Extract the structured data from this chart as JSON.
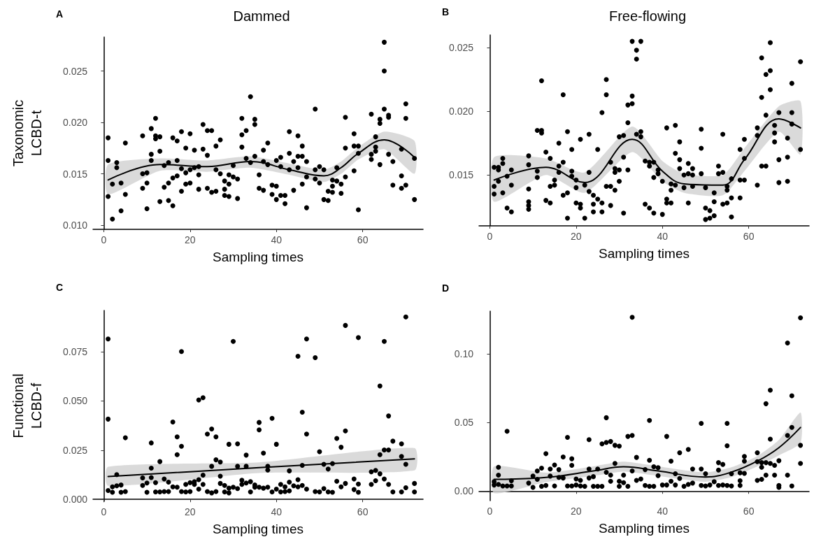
{
  "chart_data": [
    {
      "type": "scatter",
      "title": "Dammed",
      "annotations": [
        "A"
      ],
      "xlabel": "Sampling times",
      "ylabel": "Taxonomic\nLCBD-t",
      "xlim": [
        -2.5,
        74
      ],
      "xticks": [
        0,
        20,
        40,
        60
      ],
      "ylim": [
        0.0096,
        0.0283
      ],
      "yticks": [
        {
          "value": 0.01,
          "label": "0.010"
        },
        {
          "value": 0.015,
          "label": "0.015"
        },
        {
          "value": 0.02,
          "label": "0.020"
        },
        {
          "value": 0.025,
          "label": "0.025"
        }
      ],
      "marker": "circle",
      "series": [
        {
          "color": "#000000",
          "x": [
            1,
            1,
            1,
            2,
            2,
            3,
            3,
            4,
            4,
            5,
            5,
            9,
            9,
            9,
            10,
            10,
            10,
            11,
            11,
            11,
            12,
            12,
            12,
            13,
            13,
            13,
            14,
            14,
            15,
            15,
            15,
            16,
            16,
            16,
            17,
            17,
            17,
            18,
            18,
            18,
            19,
            19,
            19,
            20,
            20,
            20,
            21,
            21,
            22,
            22,
            22,
            23,
            23,
            24,
            24,
            24,
            25,
            25,
            26,
            26,
            26,
            27,
            27,
            28,
            28,
            28,
            29,
            29,
            29,
            30,
            30,
            31,
            31,
            32,
            32,
            32,
            33,
            33,
            34,
            34,
            35,
            35,
            35,
            36,
            36,
            37,
            37,
            37,
            38,
            38,
            39,
            39,
            40,
            40,
            40,
            41,
            41,
            41,
            42,
            42,
            43,
            43,
            43,
            44,
            44,
            45,
            45,
            45,
            46,
            46,
            46,
            47,
            47,
            47,
            49,
            49,
            49,
            50,
            50,
            51,
            51,
            52,
            52,
            53,
            53,
            53,
            54,
            54,
            55,
            55,
            56,
            56,
            56,
            58,
            58,
            58,
            59,
            59,
            59,
            62,
            62,
            62,
            63,
            63,
            63,
            64,
            64,
            64,
            65,
            65,
            65,
            66,
            66,
            66,
            67,
            67,
            69,
            69,
            69,
            70,
            70,
            70,
            72,
            72
          ],
          "values": [
            0.0185,
            0.0163,
            0.0128,
            0.0106,
            0.014,
            0.0161,
            0.0156,
            0.0141,
            0.0114,
            0.018,
            0.013,
            0.0187,
            0.015,
            0.0136,
            0.0151,
            0.0141,
            0.0116,
            0.0194,
            0.0169,
            0.0163,
            0.0204,
            0.0187,
            0.0184,
            0.0186,
            0.0172,
            0.0123,
            0.0158,
            0.0137,
            0.0161,
            0.0141,
            0.0124,
            0.0185,
            0.0146,
            0.0119,
            0.0182,
            0.0163,
            0.0148,
            0.0191,
            0.0155,
            0.0133,
            0.0175,
            0.0151,
            0.014,
            0.0189,
            0.0154,
            0.0141,
            0.0173,
            0.0156,
            0.0157,
            0.0149,
            0.0135,
            0.0198,
            0.0174,
            0.0192,
            0.0168,
            0.0136,
            0.0192,
            0.0132,
            0.0177,
            0.0154,
            0.0133,
            0.0183,
            0.015,
            0.0143,
            0.0135,
            0.0129,
            0.0149,
            0.014,
            0.0128,
            0.0158,
            0.0147,
            0.0145,
            0.0126,
            0.0204,
            0.0188,
            0.0176,
            0.0192,
            0.0165,
            0.0225,
            0.0161,
            0.0203,
            0.0198,
            0.0167,
            0.0149,
            0.0136,
            0.0173,
            0.0162,
            0.0134,
            0.018,
            0.0159,
            0.0139,
            0.013,
            0.0163,
            0.0138,
            0.0125,
            0.0166,
            0.0157,
            0.0129,
            0.0129,
            0.0121,
            0.0191,
            0.017,
            0.0154,
            0.0162,
            0.0134,
            0.0187,
            0.0167,
            0.0156,
            0.0177,
            0.0167,
            0.014,
            0.0162,
            0.0147,
            0.0117,
            0.0213,
            0.0154,
            0.0145,
            0.0157,
            0.0141,
            0.0154,
            0.0125,
            0.0133,
            0.0124,
            0.0144,
            0.0138,
            0.0132,
            0.0156,
            0.0143,
            0.014,
            0.0131,
            0.0205,
            0.0175,
            0.0147,
            0.0189,
            0.0177,
            0.0153,
            0.0177,
            0.017,
            0.0115,
            0.0208,
            0.0169,
            0.0164,
            0.0186,
            0.0176,
            0.0172,
            0.0203,
            0.0199,
            0.0159,
            0.0278,
            0.025,
            0.0213,
            0.0207,
            0.0205,
            0.0169,
            0.0162,
            0.0139,
            0.0174,
            0.0148,
            0.0136,
            0.0218,
            0.0204,
            0.0139,
            0.0165,
            0.0125
          ]
        },
        {
          "type": "line",
          "marker": "none",
          "color": "#000000",
          "x": [
            1,
            13,
            24,
            34,
            43,
            51,
            55,
            59,
            65,
            72
          ],
          "values": [
            0.0144,
            0.0159,
            0.0157,
            0.0162,
            0.0154,
            0.0148,
            0.0156,
            0.017,
            0.0183,
            0.0166
          ],
          "lower": [
            0.013,
            0.0153,
            0.0152,
            0.0156,
            0.0149,
            0.0142,
            0.015,
            0.0164,
            0.0174,
            0.015
          ],
          "upper": [
            0.0159,
            0.0165,
            0.0163,
            0.0167,
            0.016,
            0.0154,
            0.0162,
            0.0176,
            0.0191,
            0.0182
          ]
        }
      ]
    },
    {
      "type": "scatter",
      "title": "Free-flowing",
      "annotations": [
        "B"
      ],
      "xlabel": "Sampling times",
      "xlim": [
        -2.5,
        74
      ],
      "xticks": [
        0,
        20,
        40,
        60
      ],
      "ylim": [
        0.011,
        0.026
      ],
      "yticks": [
        {
          "value": 0.015,
          "label": "0.015"
        },
        {
          "value": 0.02,
          "label": "0.020"
        },
        {
          "value": 0.025,
          "label": "0.025"
        }
      ],
      "marker": "circle",
      "series": [
        {
          "color": "#000000",
          "x": [
            1,
            1,
            1,
            2,
            2,
            2,
            3,
            3,
            3,
            4,
            4,
            5,
            5,
            5,
            9,
            9,
            9,
            9,
            9,
            9,
            11,
            11,
            11,
            12,
            12,
            12,
            13,
            13,
            14,
            14,
            14,
            15,
            15,
            16,
            16,
            16,
            17,
            17,
            17,
            18,
            18,
            18,
            19,
            19,
            19,
            20,
            20,
            20,
            21,
            21,
            21,
            22,
            22,
            23,
            23,
            23,
            24,
            24,
            24,
            25,
            25,
            26,
            26,
            26,
            27,
            27,
            27,
            28,
            28,
            28,
            29,
            29,
            29,
            30,
            30,
            30,
            31,
            31,
            31,
            32,
            32,
            32,
            33,
            33,
            33,
            34,
            34,
            34,
            35,
            35,
            35,
            36,
            36,
            37,
            37,
            37,
            38,
            38,
            38,
            39,
            39,
            40,
            40,
            41,
            41,
            41,
            42,
            42,
            42,
            43,
            43,
            43,
            44,
            44,
            44,
            45,
            45,
            46,
            46,
            46,
            47,
            47,
            47,
            49,
            49,
            49,
            50,
            50,
            50,
            51,
            51,
            52,
            52,
            52,
            53,
            53,
            54,
            54,
            54,
            55,
            55,
            55,
            56,
            56,
            56,
            58,
            58,
            58,
            59,
            59,
            59,
            62,
            62,
            62,
            63,
            63,
            63,
            64,
            64,
            64,
            65,
            65,
            65,
            66,
            66,
            66,
            67,
            67,
            67,
            69,
            69,
            69,
            70,
            70,
            70,
            72,
            72
          ],
          "values": [
            0.0156,
            0.0141,
            0.0135,
            0.0156,
            0.0154,
            0.0145,
            0.0163,
            0.0159,
            0.0136,
            0.0149,
            0.0124,
            0.0154,
            0.0142,
            0.0121,
            0.0165,
            0.0158,
            0.0139,
            0.0129,
            0.0126,
            0.0123,
            0.0185,
            0.0153,
            0.0148,
            0.0224,
            0.0185,
            0.0183,
            0.0168,
            0.013,
            0.0163,
            0.0141,
            0.0128,
            0.0146,
            0.0142,
            0.0175,
            0.0157,
            0.0152,
            0.0213,
            0.016,
            0.0134,
            0.0184,
            0.0136,
            0.0116,
            0.017,
            0.0153,
            0.0149,
            0.0146,
            0.014,
            0.0128,
            0.0178,
            0.0127,
            0.0124,
            0.0142,
            0.0116,
            0.0182,
            0.0152,
            0.0137,
            0.0134,
            0.0127,
            0.0121,
            0.017,
            0.0131,
            0.0199,
            0.0128,
            0.0121,
            0.0225,
            0.0213,
            0.0141,
            0.016,
            0.0141,
            0.0126,
            0.0155,
            0.0152,
            0.0138,
            0.018,
            0.0154,
            0.0145,
            0.0181,
            0.0164,
            0.012,
            0.0205,
            0.0191,
            0.0154,
            0.0255,
            0.0212,
            0.0206,
            0.0248,
            0.0241,
            0.0182,
            0.0255,
            0.0184,
            0.018,
            0.0161,
            0.0127,
            0.016,
            0.0157,
            0.0124,
            0.016,
            0.0148,
            0.012,
            0.0154,
            0.0151,
            0.0145,
            0.0119,
            0.0187,
            0.0131,
            0.0128,
            0.0143,
            0.0138,
            0.0128,
            0.0189,
            0.0167,
            0.0142,
            0.0176,
            0.0162,
            0.0155,
            0.015,
            0.014,
            0.0159,
            0.0151,
            0.0128,
            0.0155,
            0.015,
            0.0141,
            0.0186,
            0.0171,
            0.0151,
            0.014,
            0.0124,
            0.0115,
            0.0122,
            0.0116,
            0.0136,
            0.0129,
            0.0118,
            0.0157,
            0.0151,
            0.0182,
            0.0152,
            0.0127,
            0.0141,
            0.0138,
            0.0128,
            0.0147,
            0.0132,
            0.0117,
            0.017,
            0.0146,
            0.0132,
            0.0178,
            0.0163,
            0.0146,
            0.0187,
            0.0181,
            0.0142,
            0.0242,
            0.0211,
            0.0157,
            0.0229,
            0.0197,
            0.0157,
            0.0254,
            0.0232,
            0.0217,
            0.0189,
            0.0183,
            0.0176,
            0.0199,
            0.0162,
            0.0144,
            0.0179,
            0.0164,
            0.0145,
            0.0222,
            0.0199,
            0.019,
            0.0239,
            0.017
          ]
        },
        {
          "type": "line",
          "marker": "none",
          "color": "#000000",
          "x": [
            1,
            13,
            22,
            33,
            40,
            45,
            54,
            59,
            67,
            72
          ],
          "values": [
            0.0146,
            0.0156,
            0.0144,
            0.0178,
            0.0153,
            0.0143,
            0.0142,
            0.0162,
            0.0194,
            0.0187
          ],
          "lower": [
            0.0129,
            0.015,
            0.0136,
            0.0168,
            0.0145,
            0.0136,
            0.0134,
            0.0153,
            0.0184,
            0.0166
          ],
          "upper": [
            0.0164,
            0.0163,
            0.0152,
            0.0188,
            0.0161,
            0.0151,
            0.015,
            0.0171,
            0.0204,
            0.0208
          ]
        }
      ]
    },
    {
      "type": "scatter",
      "annotations": [
        "C"
      ],
      "xlabel": "Sampling times",
      "ylabel": "Functional\nLCBD-f",
      "xlim": [
        -2.5,
        74
      ],
      "xticks": [
        0,
        20,
        40,
        60
      ],
      "ylim": [
        -0.001,
        0.096
      ],
      "yticks": [
        {
          "value": 0,
          "label": "0.000"
        },
        {
          "value": 0.025,
          "label": "0.025"
        },
        {
          "value": 0.05,
          "label": "0.050"
        },
        {
          "value": 0.075,
          "label": "0.075"
        }
      ],
      "marker": "circle",
      "series": [
        {
          "color": "#000000",
          "x": [
            1,
            1,
            1,
            2,
            2,
            3,
            3,
            4,
            4,
            5,
            5,
            9,
            9,
            10,
            10,
            11,
            11,
            11,
            12,
            12,
            13,
            13,
            14,
            14,
            15,
            15,
            16,
            16,
            17,
            17,
            17,
            18,
            18,
            18,
            19,
            19,
            20,
            20,
            21,
            21,
            22,
            22,
            22,
            23,
            23,
            23,
            24,
            24,
            25,
            25,
            25,
            26,
            26,
            26,
            27,
            27,
            27,
            28,
            28,
            29,
            29,
            29,
            30,
            30,
            31,
            31,
            31,
            32,
            32,
            33,
            33,
            33,
            34,
            34,
            35,
            35,
            36,
            36,
            36,
            37,
            37,
            38,
            38,
            38,
            39,
            39,
            40,
            40,
            41,
            41,
            42,
            42,
            43,
            43,
            43,
            44,
            45,
            45,
            45,
            46,
            46,
            46,
            47,
            47,
            47,
            49,
            49,
            50,
            50,
            51,
            51,
            52,
            52,
            53,
            53,
            54,
            54,
            55,
            55,
            56,
            56,
            56,
            58,
            58,
            59,
            59,
            59,
            62,
            62,
            63,
            63,
            64,
            64,
            64,
            65,
            65,
            65,
            66,
            66,
            66,
            67,
            67,
            69,
            69,
            69,
            70,
            70,
            70,
            72,
            72
          ],
          "values": [
            0.0815,
            0.0408,
            0.0045,
            0.0036,
            0.0064,
            0.0126,
            0.0069,
            0.0073,
            0.0036,
            0.0313,
            0.004,
            0.0109,
            0.0071,
            0.0083,
            0.0036,
            0.0287,
            0.0159,
            0.0111,
            0.0085,
            0.0038,
            0.0192,
            0.0038,
            0.0104,
            0.004,
            0.0088,
            0.004,
            0.0393,
            0.0064,
            0.0318,
            0.0227,
            0.0062,
            0.0751,
            0.027,
            0.004,
            0.0076,
            0.0038,
            0.0085,
            0.004,
            0.009,
            0.0076,
            0.0505,
            0.01,
            0.0052,
            0.0517,
            0.0123,
            0.0076,
            0.0332,
            0.004,
            0.0358,
            0.0168,
            0.0033,
            0.0318,
            0.0201,
            0.004,
            0.019,
            0.0118,
            0.0081,
            0.0071,
            0.0038,
            0.028,
            0.0057,
            0.0033,
            0.0803,
            0.0062,
            0.0282,
            0.0168,
            0.0055,
            0.0097,
            0.0076,
            0.0225,
            0.0168,
            0.0083,
            0.009,
            0.0038,
            0.0073,
            0.0062,
            0.0391,
            0.0353,
            0.0062,
            0.0235,
            0.0057,
            0.0168,
            0.0149,
            0.0062,
            0.0412,
            0.0038,
            0.028,
            0.0052,
            0.0076,
            0.0038,
            0.0064,
            0.004,
            0.0145,
            0.0088,
            0.0043,
            0.0069,
            0.0727,
            0.01,
            0.0064,
            0.0443,
            0.0173,
            0.0071,
            0.0815,
            0.0332,
            0.0052,
            0.072,
            0.004,
            0.0242,
            0.0038,
            0.0178,
            0.0055,
            0.0154,
            0.0038,
            0.0182,
            0.0036,
            0.031,
            0.0092,
            0.0265,
            0.0064,
            0.0884,
            0.0348,
            0.0081,
            0.0104,
            0.005,
            0.0822,
            0.0078,
            0.0036,
            0.014,
            0.0076,
            0.0147,
            0.0095,
            0.0576,
            0.0227,
            0.013,
            0.0803,
            0.0251,
            0.0104,
            0.0424,
            0.0251,
            0.0076,
            0.0296,
            0.0038,
            0.0282,
            0.0218,
            0.0038,
            0.0927,
            0.0178,
            0.0059,
            0.0081,
            0.0038
          ]
        },
        {
          "type": "line",
          "marker": "none",
          "color": "#000000",
          "x": [
            1,
            36,
            72
          ],
          "values": [
            0.0116,
            0.0161,
            0.0206
          ],
          "lower": [
            0.0069,
            0.0134,
            0.0147
          ],
          "upper": [
            0.0166,
            0.0188,
            0.0261
          ]
        }
      ]
    },
    {
      "type": "scatter",
      "annotations": [
        "D"
      ],
      "xlabel": "Sampling times",
      "xlim": [
        -2.5,
        74
      ],
      "xticks": [
        0,
        20,
        40,
        60
      ],
      "ylim": [
        -0.007,
        0.131
      ],
      "yticks": [
        {
          "value": 0,
          "label": "0.00"
        },
        {
          "value": 0.05,
          "label": "0.05"
        },
        {
          "value": 0.1,
          "label": "0.10"
        }
      ],
      "marker": "circle",
      "series": [
        {
          "color": "#000000",
          "x": [
            1,
            1,
            2,
            2,
            2,
            3,
            4,
            4,
            5,
            5,
            9,
            10,
            10,
            11,
            11,
            12,
            12,
            13,
            13,
            14,
            14,
            15,
            15,
            16,
            16,
            17,
            17,
            18,
            18,
            19,
            19,
            19,
            20,
            20,
            21,
            21,
            22,
            23,
            23,
            23,
            24,
            24,
            25,
            25,
            26,
            26,
            27,
            27,
            27,
            28,
            28,
            28,
            29,
            29,
            30,
            30,
            30,
            31,
            31,
            32,
            32,
            33,
            33,
            33,
            34,
            34,
            35,
            36,
            36,
            37,
            37,
            37,
            38,
            38,
            39,
            39,
            40,
            41,
            41,
            42,
            42,
            43,
            43,
            44,
            44,
            45,
            46,
            46,
            47,
            47,
            49,
            49,
            49,
            50,
            50,
            51,
            52,
            53,
            53,
            53,
            54,
            54,
            55,
            55,
            55,
            56,
            56,
            58,
            58,
            58,
            59,
            59,
            59,
            62,
            62,
            62,
            63,
            63,
            63,
            64,
            64,
            64,
            65,
            65,
            65,
            66,
            66,
            67,
            67,
            67,
            69,
            69,
            69,
            70,
            70,
            70,
            72,
            72,
            72
          ],
          "values": [
            0.0068,
            0.0044,
            0.0173,
            0.0116,
            0.0048,
            0.0037,
            0.0435,
            0.0037,
            0.0037,
            0.0075,
            0.0058,
            0.0109,
            0.0027,
            0.0146,
            0.0085,
            0.0167,
            0.0034,
            0.0272,
            0.0041,
            0.016,
            0.0109,
            0.019,
            0.0037,
            0.0156,
            0.0099,
            0.0248,
            0.0095,
            0.0391,
            0.0037,
            0.0235,
            0.0187,
            0.0037,
            0.0088,
            0.0044,
            0.0078,
            0.0037,
            0.0034,
            0.0374,
            0.016,
            0.0095,
            0.0105,
            0.0034,
            0.016,
            0.0034,
            0.0344,
            0.0034,
            0.0534,
            0.0354,
            0.0136,
            0.0361,
            0.0116,
            0.0071,
            0.0333,
            0.0201,
            0.0327,
            0.0071,
            0.0034,
            0.0116,
            0.0061,
            0.0398,
            0.0034,
            0.1265,
            0.0405,
            0.0146,
            0.0245,
            0.0078,
            0.0088,
            0.0156,
            0.0041,
            0.0514,
            0.0224,
            0.0034,
            0.0177,
            0.0034,
            0.017,
            0.0112,
            0.0044,
            0.0398,
            0.0044,
            0.0218,
            0.0071,
            0.0126,
            0.0044,
            0.0279,
            0.0092,
            0.0034,
            0.0303,
            0.0048,
            0.016,
            0.0058,
            0.0493,
            0.016,
            0.0041,
            0.0126,
            0.0037,
            0.0044,
            0.0068,
            0.0207,
            0.0153,
            0.0041,
            0.0194,
            0.0044,
            0.0493,
            0.033,
            0.0041,
            0.0126,
            0.0037,
            0.0133,
            0.0075,
            0.0041,
            0.0252,
            0.0218,
            0.0129,
            0.0279,
            0.0214,
            0.0078,
            0.0207,
            0.0173,
            0.0085,
            0.0636,
            0.0207,
            0.0116,
            0.0735,
            0.0378,
            0.0201,
            0.0187,
            0.0116,
            0.0221,
            0.0041,
            0.0027,
            0.1078,
            0.0405,
            0.0116,
            0.0694,
            0.0463,
            0.0037,
            0.1262,
            0.0333,
            0.0201
          ]
        },
        {
          "type": "line",
          "marker": "none",
          "color": "#000000",
          "x": [
            1,
            13,
            24,
            31,
            39,
            50,
            56,
            62,
            67,
            72
          ],
          "values": [
            0.0085,
            0.0099,
            0.0146,
            0.0177,
            0.0146,
            0.0102,
            0.0138,
            0.0218,
            0.0316,
            0.0463
          ],
          "lower": [
            -0.0015,
            0.0065,
            0.011,
            0.0141,
            0.011,
            0.0068,
            0.0102,
            0.018,
            0.026,
            0.035
          ],
          "upper": [
            0.018,
            0.0134,
            0.018,
            0.0214,
            0.018,
            0.0136,
            0.0173,
            0.0255,
            0.0372,
            0.0571
          ]
        }
      ]
    }
  ]
}
